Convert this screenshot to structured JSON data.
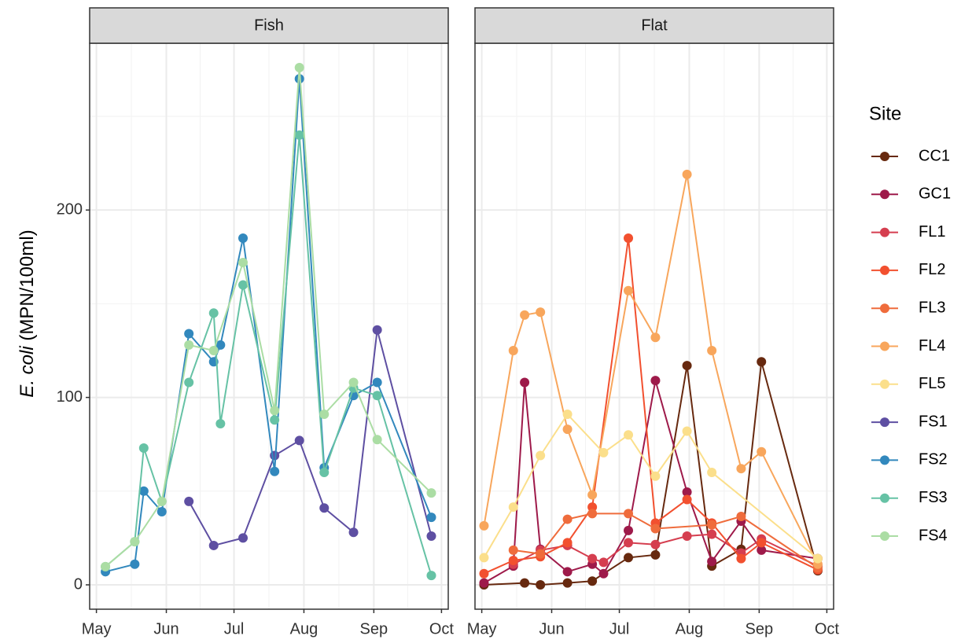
{
  "y_label": {
    "italic": "E. coli",
    "text": "(MPN/100ml)"
  },
  "legend_title": "Site",
  "chart_data": [
    {
      "type": "line",
      "title": "Fish",
      "xlim": [
        -3,
        156
      ],
      "xticks": [
        {
          "value": 0,
          "label": "May"
        },
        {
          "value": 31,
          "label": "Jun"
        },
        {
          "value": 61,
          "label": "Jul"
        },
        {
          "value": 92,
          "label": "Aug"
        },
        {
          "value": 123,
          "label": "Sep"
        },
        {
          "value": 153,
          "label": "Oct"
        }
      ],
      "xminor": [
        15.5,
        46,
        76.5,
        107.5,
        138
      ],
      "ylim": [
        -13,
        289
      ],
      "yticks": [
        0,
        100,
        200
      ],
      "yminor": [
        50,
        150,
        250
      ],
      "series": [
        {
          "name": "FS1",
          "color": "#5e4fa2",
          "x": [
            41,
            52,
            65,
            79,
            90,
            101,
            114,
            124.5,
            148.5
          ],
          "values": [
            44.5,
            21,
            25,
            69,
            77,
            41,
            28,
            136,
            26
          ]
        },
        {
          "name": "FS2",
          "color": "#3288bd",
          "x": [
            4,
            17,
            21,
            29,
            41,
            52,
            55,
            65,
            79,
            90,
            101,
            114,
            124.5,
            148.5
          ],
          "values": [
            7,
            11,
            50,
            39,
            134,
            119,
            128,
            185,
            60.5,
            270,
            62.5,
            101,
            108,
            36
          ]
        },
        {
          "name": "FS3",
          "color": "#66c2a5",
          "x": [
            4,
            17,
            21,
            29,
            41,
            52,
            55,
            65,
            79,
            90,
            101,
            114,
            124.5,
            148.5
          ],
          "values": [
            9.7,
            23,
            73,
            44.5,
            108,
            145,
            86,
            160,
            88,
            240,
            60,
            105,
            101,
            5
          ]
        },
        {
          "name": "FS4",
          "color": "#abdda4",
          "x": [
            4,
            17,
            29,
            41,
            52,
            65,
            79,
            90,
            101,
            114,
            124.5,
            148.5
          ],
          "values": [
            9.7,
            23,
            44.5,
            128,
            125,
            172,
            93,
            276,
            91,
            108,
            77.5,
            49
          ]
        }
      ]
    },
    {
      "type": "line",
      "title": "Flat",
      "xlim": [
        -3,
        156
      ],
      "xticks": [
        {
          "value": 0,
          "label": "May"
        },
        {
          "value": 31,
          "label": "Jun"
        },
        {
          "value": 61,
          "label": "Jul"
        },
        {
          "value": 92,
          "label": "Aug"
        },
        {
          "value": 123,
          "label": "Sep"
        },
        {
          "value": 153,
          "label": "Oct"
        }
      ],
      "xminor": [
        15.5,
        46,
        76.5,
        107.5,
        138
      ],
      "ylim": [
        -13,
        289
      ],
      "yticks": [
        0,
        100,
        200
      ],
      "yminor": [
        50,
        150,
        250
      ],
      "series": [
        {
          "name": "CC1",
          "color": "#67290f",
          "x": [
            1,
            19,
            26,
            38,
            49,
            65,
            77,
            91,
            102,
            115,
            124,
            149
          ],
          "values": [
            0,
            1,
            0,
            1,
            2,
            14.5,
            16,
            117,
            10,
            19,
            119,
            7.5
          ]
        },
        {
          "name": "GC1",
          "color": "#9e1a4a",
          "x": [
            1,
            14,
            19,
            26,
            38,
            49,
            54,
            65,
            77,
            91,
            102,
            115,
            124,
            149
          ],
          "values": [
            1,
            10,
            108,
            19,
            7,
            11,
            6,
            29,
            109,
            49.5,
            12.5,
            34,
            18.5,
            14
          ]
        },
        {
          "name": "FL1",
          "color": "#d53e4f",
          "x": [
            14,
            26,
            38,
            49,
            54,
            65,
            77,
            91,
            102,
            115,
            124,
            149
          ],
          "values": [
            11,
            18.5,
            21,
            14,
            12,
            22.5,
            21.5,
            26,
            27,
            17,
            24.5,
            10
          ]
        },
        {
          "name": "FL2",
          "color": "#f2502f",
          "x": [
            1,
            14,
            26,
            38,
            49,
            65,
            77,
            91,
            102,
            115,
            124,
            149
          ],
          "values": [
            6,
            13,
            15,
            22.5,
            41.5,
            185,
            33,
            45.5,
            33,
            14,
            22.5,
            8
          ]
        },
        {
          "name": "FL3",
          "color": "#ef6c3c",
          "x": [
            14,
            26,
            38,
            49,
            65,
            77,
            102,
            115,
            149
          ],
          "values": [
            18.5,
            16.5,
            35,
            38,
            38,
            30,
            32,
            36.5,
            9
          ]
        },
        {
          "name": "FL4",
          "color": "#f8a65c",
          "x": [
            1,
            14,
            19,
            26,
            38,
            49,
            65,
            77,
            91,
            102,
            115,
            124,
            149
          ],
          "values": [
            31.5,
            125,
            144,
            145.5,
            83,
            48,
            157,
            132,
            219,
            125,
            62,
            71,
            11
          ]
        },
        {
          "name": "FL5",
          "color": "#fbdf8b",
          "x": [
            1,
            14,
            26,
            38,
            54,
            65,
            77,
            91,
            102,
            149
          ],
          "values": [
            14.5,
            41.5,
            69,
            91,
            70.5,
            80,
            58,
            82,
            60,
            14
          ]
        }
      ]
    }
  ]
}
